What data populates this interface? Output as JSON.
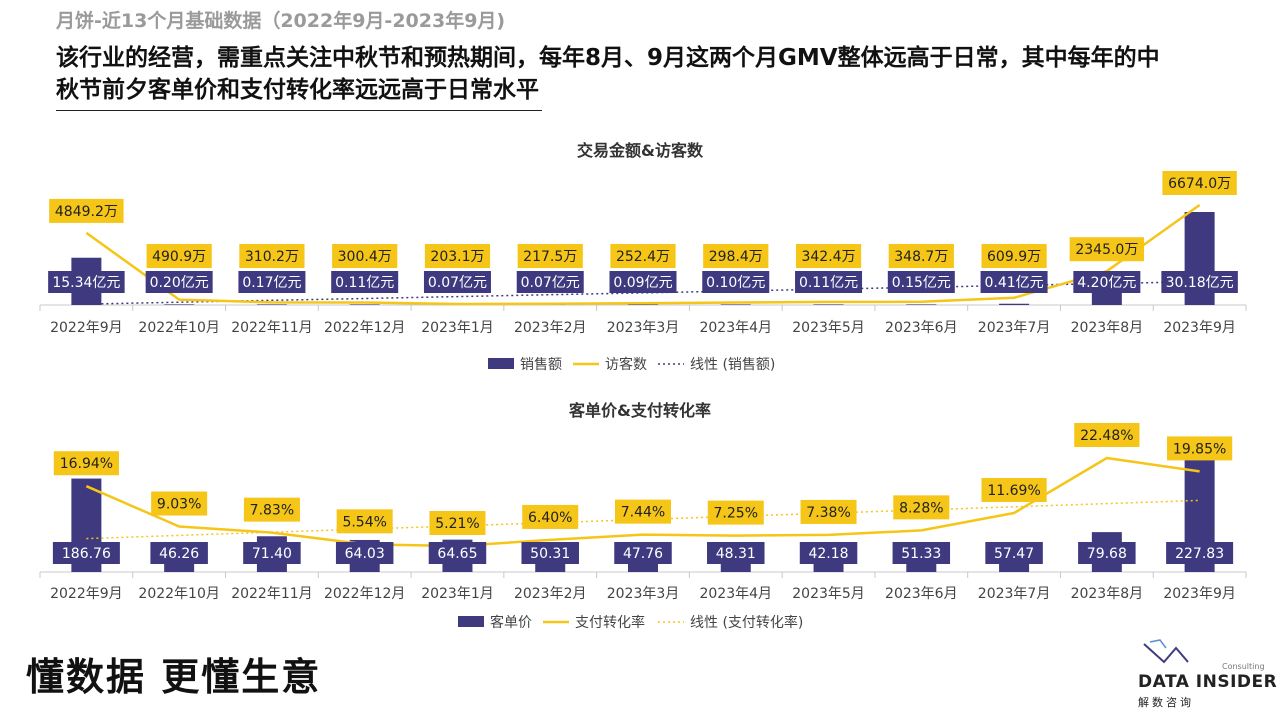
{
  "header": {
    "subtitle": "月饼-近13个月基础数据（2022年9月-2023年9月)",
    "headline": "该行业的经营，需重点关注中秋节和预热期间，每年8月、9月这两个月GMV整体远高于日常，其中每年的中秋节前夕客单价和支付转化率远远高于日常水平"
  },
  "footer": {
    "slogan": "懂数据 更懂生意",
    "logo_text": "DATA INSIDER",
    "logo_sub": "解数咨询",
    "logo_consulting": "Consulting"
  },
  "colors": {
    "bar": "#3f3a80",
    "line": "#f5c518",
    "trend_bar": "#3f3a80",
    "trend_line": "#f5c518"
  },
  "chart_data": [
    {
      "type": "bar",
      "title": "交易金额&访客数",
      "categories": [
        "2022年9月",
        "2022年10月",
        "2022年11月",
        "2022年12月",
        "2023年1月",
        "2023年2月",
        "2023年3月",
        "2023年4月",
        "2023年5月",
        "2023年6月",
        "2023年7月",
        "2023年8月",
        "2023年9月"
      ],
      "series": [
        {
          "name": "销售额",
          "kind": "bar",
          "values": [
            15.34,
            0.2,
            0.17,
            0.11,
            0.07,
            0.07,
            0.09,
            0.1,
            0.11,
            0.15,
            0.41,
            4.2,
            30.18
          ],
          "labels": [
            "15.34亿元",
            "0.20亿元",
            "0.17亿元",
            "0.11亿元",
            "0.07亿元",
            "0.07亿元",
            "0.09亿元",
            "0.10亿元",
            "0.11亿元",
            "0.15亿元",
            "0.41亿元",
            "4.20亿元",
            "30.18亿元"
          ]
        },
        {
          "name": "访客数",
          "kind": "line",
          "values": [
            4849.2,
            490.9,
            310.2,
            300.4,
            203.1,
            217.5,
            252.4,
            298.4,
            342.4,
            348.7,
            609.9,
            2345.0,
            6674.0
          ],
          "labels": [
            "4849.2万",
            "490.9万",
            "310.2万",
            "300.4万",
            "203.1万",
            "217.5万",
            "252.4万",
            "298.4万",
            "342.4万",
            "348.7万",
            "609.9万",
            "2345.0万",
            "6674.0万"
          ]
        },
        {
          "name": "线性 (销售额)",
          "kind": "trend"
        }
      ],
      "legend": [
        "销售额",
        "访客数",
        "线性 (销售额)"
      ],
      "legend_position": "bottom",
      "grid": false
    },
    {
      "type": "bar",
      "title": "客单价&支付转化率",
      "categories": [
        "2022年9月",
        "2022年10月",
        "2022年11月",
        "2022年12月",
        "2023年1月",
        "2023年2月",
        "2023年3月",
        "2023年4月",
        "2023年5月",
        "2023年6月",
        "2023年7月",
        "2023年8月",
        "2023年9月"
      ],
      "series": [
        {
          "name": "客单价",
          "kind": "bar",
          "values": [
            186.76,
            46.26,
            71.4,
            64.03,
            64.65,
            50.31,
            47.76,
            48.31,
            42.18,
            51.33,
            57.47,
            79.68,
            227.83
          ],
          "labels": [
            "186.76",
            "46.26",
            "71.40",
            "64.03",
            "64.65",
            "50.31",
            "47.76",
            "48.31",
            "42.18",
            "51.33",
            "57.47",
            "79.68",
            "227.83"
          ]
        },
        {
          "name": "支付转化率",
          "kind": "line",
          "values": [
            16.94,
            9.03,
            7.83,
            5.54,
            5.21,
            6.4,
            7.44,
            7.25,
            7.38,
            8.28,
            11.69,
            22.48,
            19.85
          ],
          "labels": [
            "16.94%",
            "9.03%",
            "7.83%",
            "5.54%",
            "5.21%",
            "6.40%",
            "7.44%",
            "7.25%",
            "7.38%",
            "8.28%",
            "11.69%",
            "22.48%",
            "19.85%"
          ]
        },
        {
          "name": "线性 (支付转化率)",
          "kind": "trend"
        }
      ],
      "legend": [
        "客单价",
        "支付转化率",
        "线性 (支付转化率)"
      ],
      "legend_position": "bottom",
      "grid": false
    }
  ]
}
